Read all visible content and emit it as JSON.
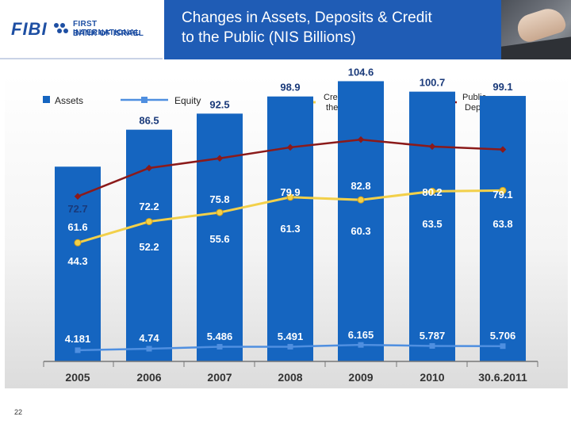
{
  "header": {
    "logo_text": "FIBI",
    "logo_line1": "FIRST INTERNATIONAL",
    "logo_line2": "BANK OF ISRAEL",
    "title": "Changes in Assets, Deposits & Credit\n to the Public (NIS Billions)"
  },
  "page_number": "22",
  "colors": {
    "title_bg": "#1f5cb5",
    "assets_bar": "#1565c0",
    "equity_line": "#4f8fe0",
    "credit_line": "#f2d04a",
    "deposits_line": "#8b1a1a"
  },
  "chart_data": {
    "type": "bar",
    "categories": [
      "2005",
      "2006",
      "2007",
      "2008",
      "2009",
      "2010",
      "30.6.2011"
    ],
    "legend": {
      "assets": "Assets",
      "equity": "Equity",
      "credit": "Credit to\n the public",
      "deposits": "Public\n Deposits"
    },
    "series": [
      {
        "name": "Assets",
        "type": "bar",
        "values": [
          72.7,
          86.5,
          92.5,
          98.9,
          104.6,
          100.7,
          99.1
        ],
        "labels": [
          "72.7",
          "86.5",
          "92.5",
          "98.9",
          "104.6",
          "100.7",
          "99.1"
        ]
      },
      {
        "name": "Public Deposits",
        "type": "line",
        "values": [
          61.6,
          72.2,
          75.8,
          79.9,
          82.8,
          80.2,
          79.1
        ],
        "labels": [
          "61.6",
          "72.2",
          "75.8",
          "79.9",
          "82.8",
          "80.2",
          "79.1"
        ]
      },
      {
        "name": "Credit to the public",
        "type": "line",
        "values": [
          44.3,
          52.2,
          55.6,
          61.3,
          60.3,
          63.5,
          63.8
        ],
        "labels": [
          "44.3",
          "52.2",
          "55.6",
          "61.3",
          "60.3",
          "63.5",
          "63.8"
        ]
      },
      {
        "name": "Equity",
        "type": "line",
        "values": [
          4.181,
          4.74,
          5.486,
          5.491,
          6.165,
          5.787,
          5.706
        ],
        "labels": [
          "4.181",
          "4.74",
          "5.486",
          "5.491",
          "6.165",
          "5.787",
          "5.706"
        ]
      }
    ],
    "ylim": [
      0,
      120
    ],
    "grid": false,
    "legend_position": "top"
  }
}
